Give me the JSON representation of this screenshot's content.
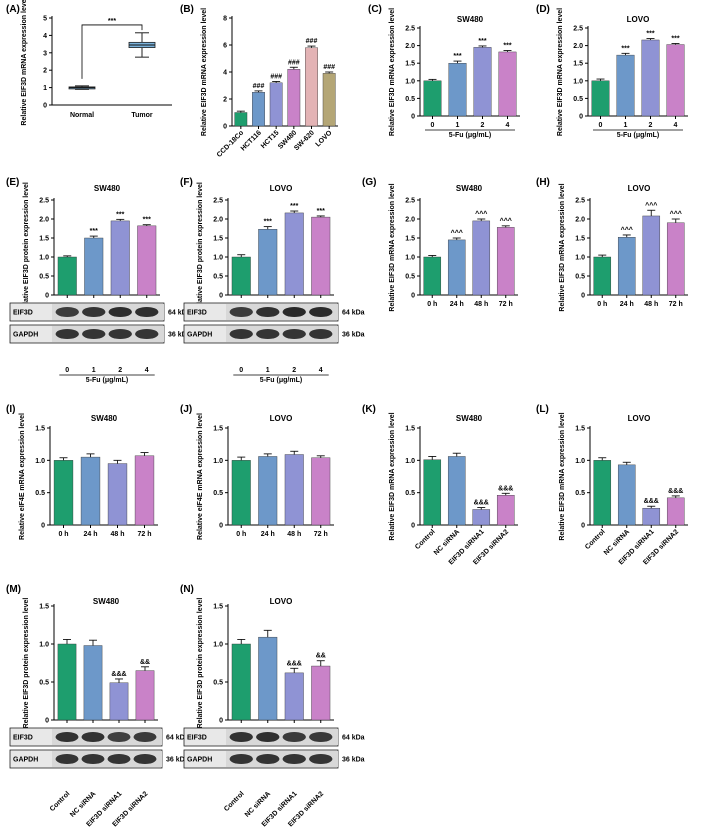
{
  "colors": {
    "green": "#1e9e6e",
    "blue": "#6d98c9",
    "lavender": "#8f93d4",
    "purple": "#c982c8",
    "pink": "#e3b3b5",
    "olive": "#b4a676",
    "box": "#7bb3dc"
  },
  "chart_data": [
    {
      "id": "A",
      "label": "(A)",
      "type": "box",
      "title": "",
      "ylabel": "Relative EIF3D mRNA expression level",
      "ylim": [
        0,
        5
      ],
      "yticks": [
        0,
        1,
        2,
        3,
        4,
        5
      ],
      "categories": [
        "Normal",
        "Tumor"
      ],
      "boxes": [
        {
          "name": "Normal",
          "min": 0.9,
          "q1": 0.96,
          "median": 1.0,
          "q3": 1.04,
          "max": 1.1
        },
        {
          "name": "Tumor",
          "min": 2.75,
          "q1": 3.3,
          "median": 3.45,
          "q3": 3.6,
          "max": 4.15
        }
      ],
      "sig": "***",
      "xlabel": ""
    },
    {
      "id": "B",
      "label": "(B)",
      "type": "bar",
      "title": "",
      "ylabel": "Relative EIF3D mRNA expression level",
      "ylim": [
        0,
        8
      ],
      "yticks": [
        0,
        2,
        4,
        6,
        8
      ],
      "categories": [
        "CCD-18Co",
        "HCT116",
        "HCT15",
        "SW480",
        "SW-620",
        "LOVO"
      ],
      "values": [
        1.0,
        2.5,
        3.2,
        4.2,
        5.8,
        3.9
      ],
      "errors": [
        0.1,
        0.1,
        0.1,
        0.15,
        0.12,
        0.1
      ],
      "annotations": [
        "",
        "###",
        "###",
        "###",
        "###",
        "###"
      ],
      "colors": [
        "green",
        "blue",
        "lavender",
        "purple",
        "pink",
        "olive"
      ],
      "rotate": true,
      "xlabel": ""
    },
    {
      "id": "C",
      "label": "(C)",
      "type": "bar",
      "title": "SW480",
      "ylabel": "Relative EIF3D mRNA expression level",
      "ylim": [
        0,
        2.5
      ],
      "yticks": [
        0,
        0.5,
        1.0,
        1.5,
        2.0,
        2.5
      ],
      "categories": [
        "0",
        "1",
        "2",
        "4"
      ],
      "values": [
        1.0,
        1.5,
        1.95,
        1.82
      ],
      "errors": [
        0.04,
        0.06,
        0.04,
        0.04
      ],
      "annotations": [
        "",
        "***",
        "***",
        "***"
      ],
      "xlabel": "5-Fu (μg/mL)"
    },
    {
      "id": "D",
      "label": "(D)",
      "type": "bar",
      "title": "LOVO",
      "ylabel": "Relative EIF3D mRNA expression level",
      "ylim": [
        0,
        2.5
      ],
      "yticks": [
        0,
        0.5,
        1.0,
        1.5,
        2.0,
        2.5
      ],
      "categories": [
        "0",
        "1",
        "2",
        "4"
      ],
      "values": [
        1.0,
        1.73,
        2.16,
        2.03
      ],
      "errors": [
        0.05,
        0.05,
        0.04,
        0.03
      ],
      "annotations": [
        "",
        "***",
        "***",
        "***"
      ],
      "xlabel": "5-Fu (μg/mL)"
    },
    {
      "id": "E",
      "label": "(E)",
      "type": "bar",
      "title": "SW480",
      "ylabel": "Relative EIF3D protein expression level",
      "ylim": [
        0,
        2.5
      ],
      "yticks": [
        0,
        0.5,
        1.0,
        1.5,
        2.0,
        2.5
      ],
      "categories": [
        "0",
        "1",
        "2",
        "4"
      ],
      "values": [
        1.0,
        1.5,
        1.95,
        1.82
      ],
      "errors": [
        0.03,
        0.05,
        0.04,
        0.03
      ],
      "annotations": [
        "",
        "***",
        "***",
        "***"
      ],
      "xlabel": "5-Fu (μg/mL)",
      "blot": {
        "rows": [
          {
            "label": "EIF3D",
            "kda": "64 kDa"
          },
          {
            "label": "GAPDH",
            "kda": "36 kDa"
          }
        ]
      }
    },
    {
      "id": "F",
      "label": "(F)",
      "type": "bar",
      "title": "LOVO",
      "ylabel": "Relative EIF3D protein expression level",
      "ylim": [
        0,
        2.5
      ],
      "yticks": [
        0,
        0.5,
        1.0,
        1.5,
        2.0,
        2.5
      ],
      "categories": [
        "0",
        "1",
        "2",
        "4"
      ],
      "values": [
        1.0,
        1.73,
        2.16,
        2.05
      ],
      "errors": [
        0.06,
        0.07,
        0.05,
        0.03
      ],
      "annotations": [
        "",
        "***",
        "***",
        "***"
      ],
      "xlabel": "5-Fu (μg/mL)",
      "blot": {
        "rows": [
          {
            "label": "EIF3D",
            "kda": "64 kDa"
          },
          {
            "label": "GAPDH",
            "kda": "36 kDa"
          }
        ]
      }
    },
    {
      "id": "G",
      "label": "(G)",
      "type": "bar",
      "title": "SW480",
      "ylabel": "Relative EIF3D mRNA expression level",
      "ylim": [
        0,
        2.5
      ],
      "yticks": [
        0,
        0.5,
        1.0,
        1.5,
        2.0,
        2.5
      ],
      "categories": [
        "0 h",
        "24 h",
        "48 h",
        "72 h"
      ],
      "values": [
        1.0,
        1.45,
        1.95,
        1.78
      ],
      "errors": [
        0.04,
        0.05,
        0.05,
        0.04
      ],
      "annotations": [
        "",
        "^^^",
        "^^^",
        "^^^"
      ],
      "xlabel": ""
    },
    {
      "id": "H",
      "label": "(H)",
      "type": "bar",
      "title": "LOVO",
      "ylabel": "Relative EIF3D mRNA expression level",
      "ylim": [
        0,
        2.5
      ],
      "yticks": [
        0,
        0.5,
        1.0,
        1.5,
        2.0,
        2.5
      ],
      "categories": [
        "0 h",
        "24 h",
        "48 h",
        "72 h"
      ],
      "values": [
        1.0,
        1.52,
        2.08,
        1.9
      ],
      "errors": [
        0.05,
        0.06,
        0.15,
        0.1
      ],
      "annotations": [
        "",
        "^^^",
        "^^^",
        "^^^"
      ],
      "xlabel": ""
    },
    {
      "id": "I",
      "label": "(I)",
      "type": "bar",
      "title": "SW480",
      "ylabel": "Relative eIF4E mRNA expression level",
      "ylim": [
        0,
        1.5
      ],
      "yticks": [
        0,
        0.5,
        1.0,
        1.5
      ],
      "categories": [
        "0 h",
        "24 h",
        "48 h",
        "72 h"
      ],
      "values": [
        1.0,
        1.05,
        0.95,
        1.07
      ],
      "errors": [
        0.04,
        0.05,
        0.05,
        0.05
      ],
      "annotations": [
        "",
        "",
        "",
        ""
      ],
      "xlabel": ""
    },
    {
      "id": "J",
      "label": "(J)",
      "type": "bar",
      "title": "LOVO",
      "ylabel": "Relative eIF4E mRNA expression level",
      "ylim": [
        0,
        1.5
      ],
      "yticks": [
        0,
        0.5,
        1.0,
        1.5
      ],
      "categories": [
        "0 h",
        "24 h",
        "48 h",
        "72 h"
      ],
      "values": [
        1.0,
        1.06,
        1.09,
        1.04
      ],
      "errors": [
        0.05,
        0.04,
        0.05,
        0.03
      ],
      "annotations": [
        "",
        "",
        "",
        ""
      ],
      "xlabel": ""
    },
    {
      "id": "K",
      "label": "(K)",
      "type": "bar",
      "title": "SW480",
      "ylabel": "Relative EIF3D mRNA expression level",
      "ylim": [
        0,
        1.5
      ],
      "yticks": [
        0,
        0.5,
        1.0,
        1.5
      ],
      "categories": [
        "Control",
        "NC siRNA",
        "EIF3D siRNA1",
        "EIF3D siRNA2"
      ],
      "values": [
        1.01,
        1.06,
        0.24,
        0.46
      ],
      "errors": [
        0.05,
        0.05,
        0.03,
        0.03
      ],
      "annotations": [
        "",
        "",
        "&&&",
        "&&&"
      ],
      "rotate": true,
      "xlabel": ""
    },
    {
      "id": "L",
      "label": "(L)",
      "type": "bar",
      "title": "LOVO",
      "ylabel": "Relative EIF3D mRNA expression level",
      "ylim": [
        0,
        1.5
      ],
      "yticks": [
        0,
        0.5,
        1.0,
        1.5
      ],
      "categories": [
        "Control",
        "NC siRNA",
        "EIF3D siRNA1",
        "EIF3D siRNA2"
      ],
      "values": [
        1.0,
        0.93,
        0.26,
        0.42
      ],
      "errors": [
        0.04,
        0.04,
        0.03,
        0.03
      ],
      "annotations": [
        "",
        "",
        "&&&",
        "&&&"
      ],
      "rotate": true,
      "xlabel": ""
    },
    {
      "id": "M",
      "label": "(M)",
      "type": "bar",
      "title": "SW480",
      "ylabel": "Relative EIF3D protein expression level",
      "ylim": [
        0,
        1.5
      ],
      "yticks": [
        0,
        0.5,
        1.0,
        1.5
      ],
      "categories": [
        "Control",
        "NC siRNA",
        "EIF3D siRNA1",
        "EIF3D siRNA2"
      ],
      "values": [
        1.0,
        0.98,
        0.49,
        0.65
      ],
      "errors": [
        0.06,
        0.07,
        0.05,
        0.05
      ],
      "annotations": [
        "",
        "",
        "&&&",
        "&&"
      ],
      "rotate": true,
      "xlabel": "",
      "blot": {
        "rows": [
          {
            "label": "EIF3D",
            "kda": "64 kDa"
          },
          {
            "label": "GAPDH",
            "kda": "36 kDa"
          }
        ]
      }
    },
    {
      "id": "N",
      "label": "(N)",
      "type": "bar",
      "title": "LOVO",
      "ylabel": "Relative EIF3D protein expression level",
      "ylim": [
        0,
        1.5
      ],
      "yticks": [
        0,
        0.5,
        1.0,
        1.5
      ],
      "categories": [
        "Control",
        "NC siRNA",
        "EIF3D siRNA1",
        "EIF3D siRNA2"
      ],
      "values": [
        1.0,
        1.09,
        0.62,
        0.71
      ],
      "errors": [
        0.06,
        0.09,
        0.06,
        0.07
      ],
      "annotations": [
        "",
        "",
        "&&&",
        "&&"
      ],
      "rotate": true,
      "xlabel": "",
      "blot": {
        "rows": [
          {
            "label": "EIF3D",
            "kda": "64 kDa"
          },
          {
            "label": "GAPDH",
            "kda": "36 kDa"
          }
        ]
      }
    }
  ]
}
